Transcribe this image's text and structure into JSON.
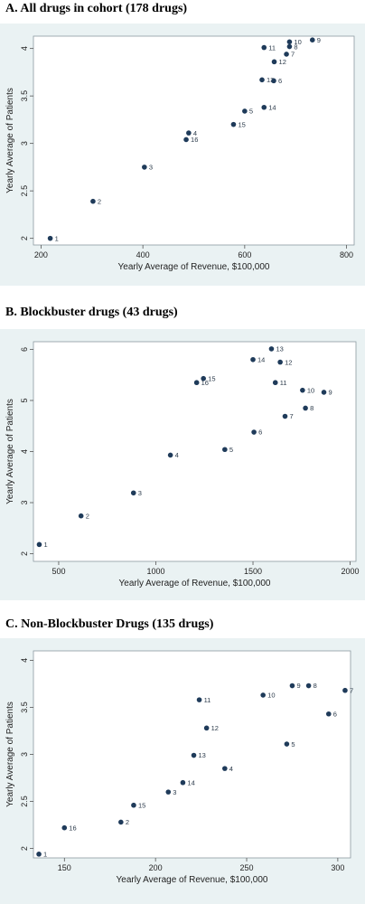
{
  "chart_data": [
    {
      "type": "scatter",
      "title": "A.  All drugs in cohort (178 drugs)",
      "xlabel": "Yearly Average of Revenue, $100,000",
      "ylabel": "Yearly Average of Patients",
      "xlim": [
        185,
        815
      ],
      "ylim": [
        1.93,
        4.13
      ],
      "xticks": [
        200,
        400,
        600,
        800
      ],
      "yticks": [
        2,
        2.5,
        3,
        3.5,
        4
      ],
      "ytick_labels": [
        "2",
        "2.5",
        "3",
        "3.5",
        "4"
      ],
      "point_color": "#1f3b5a",
      "points": [
        {
          "label": "1",
          "x": 218,
          "y": 2.0
        },
        {
          "label": "2",
          "x": 302,
          "y": 2.39
        },
        {
          "label": "3",
          "x": 403,
          "y": 2.75
        },
        {
          "label": "4",
          "x": 490,
          "y": 3.11
        },
        {
          "label": "16",
          "x": 485,
          "y": 3.04
        },
        {
          "label": "5",
          "x": 600,
          "y": 3.34
        },
        {
          "label": "15",
          "x": 578,
          "y": 3.2
        },
        {
          "label": "14",
          "x": 638,
          "y": 3.38
        },
        {
          "label": "13",
          "x": 634,
          "y": 3.67
        },
        {
          "label": "6",
          "x": 657,
          "y": 3.66
        },
        {
          "label": "12",
          "x": 658,
          "y": 3.86
        },
        {
          "label": "7",
          "x": 682,
          "y": 3.94
        },
        {
          "label": "8",
          "x": 688,
          "y": 4.02
        },
        {
          "label": "11",
          "x": 638,
          "y": 4.01
        },
        {
          "label": "10",
          "x": 688,
          "y": 4.07
        },
        {
          "label": "9",
          "x": 733,
          "y": 4.09
        }
      ]
    },
    {
      "type": "scatter",
      "title": "B.  Blockbuster drugs (43 drugs)",
      "xlabel": "Yearly Average of Revenue, $100,000",
      "ylabel": "Yearly Average of Patients",
      "xlim": [
        370,
        2030
      ],
      "ylim": [
        1.85,
        6.15
      ],
      "xticks": [
        500,
        1000,
        1500,
        2000
      ],
      "yticks": [
        2,
        3,
        4,
        5,
        6
      ],
      "ytick_labels": [
        "2",
        "3",
        "4",
        "5",
        "6"
      ],
      "point_color": "#1f3b5a",
      "points": [
        {
          "label": "1",
          "x": 400,
          "y": 2.18
        },
        {
          "label": "2",
          "x": 615,
          "y": 2.74
        },
        {
          "label": "3",
          "x": 885,
          "y": 3.19
        },
        {
          "label": "4",
          "x": 1075,
          "y": 3.93
        },
        {
          "label": "5",
          "x": 1355,
          "y": 4.04
        },
        {
          "label": "6",
          "x": 1505,
          "y": 4.38
        },
        {
          "label": "7",
          "x": 1665,
          "y": 4.69
        },
        {
          "label": "8",
          "x": 1770,
          "y": 4.85
        },
        {
          "label": "9",
          "x": 1865,
          "y": 5.16
        },
        {
          "label": "10",
          "x": 1755,
          "y": 5.2
        },
        {
          "label": "11",
          "x": 1615,
          "y": 5.35
        },
        {
          "label": "12",
          "x": 1640,
          "y": 5.75
        },
        {
          "label": "13",
          "x": 1595,
          "y": 6.01
        },
        {
          "label": "14",
          "x": 1500,
          "y": 5.8
        },
        {
          "label": "15",
          "x": 1245,
          "y": 5.43
        },
        {
          "label": "16",
          "x": 1210,
          "y": 5.35
        }
      ]
    },
    {
      "type": "scatter",
      "title": "C.  Non-Blockbuster Drugs (135 drugs)",
      "xlabel": "Yearly Average of Revenue, $100,000",
      "ylabel": "Yearly Average of Patients",
      "xlim": [
        133,
        307
      ],
      "ylim": [
        1.9,
        4.1
      ],
      "xticks": [
        150,
        200,
        250,
        300
      ],
      "yticks": [
        2,
        2.5,
        3,
        3.5,
        4
      ],
      "ytick_labels": [
        "2",
        "2.5",
        "3",
        "3.5",
        "4"
      ],
      "point_color": "#1f3b5a",
      "points": [
        {
          "label": "1",
          "x": 136,
          "y": 1.94
        },
        {
          "label": "16",
          "x": 150,
          "y": 2.22
        },
        {
          "label": "2",
          "x": 181,
          "y": 2.28
        },
        {
          "label": "15",
          "x": 188,
          "y": 2.46
        },
        {
          "label": "3",
          "x": 207,
          "y": 2.6
        },
        {
          "label": "14",
          "x": 215,
          "y": 2.7
        },
        {
          "label": "13",
          "x": 221,
          "y": 2.99
        },
        {
          "label": "4",
          "x": 238,
          "y": 2.85
        },
        {
          "label": "12",
          "x": 228,
          "y": 3.28
        },
        {
          "label": "11",
          "x": 224,
          "y": 3.58
        },
        {
          "label": "5",
          "x": 272,
          "y": 3.11
        },
        {
          "label": "10",
          "x": 259,
          "y": 3.63
        },
        {
          "label": "9",
          "x": 275,
          "y": 3.73
        },
        {
          "label": "8",
          "x": 284,
          "y": 3.73
        },
        {
          "label": "6",
          "x": 295,
          "y": 3.43
        },
        {
          "label": "7",
          "x": 304,
          "y": 3.68
        }
      ]
    }
  ]
}
